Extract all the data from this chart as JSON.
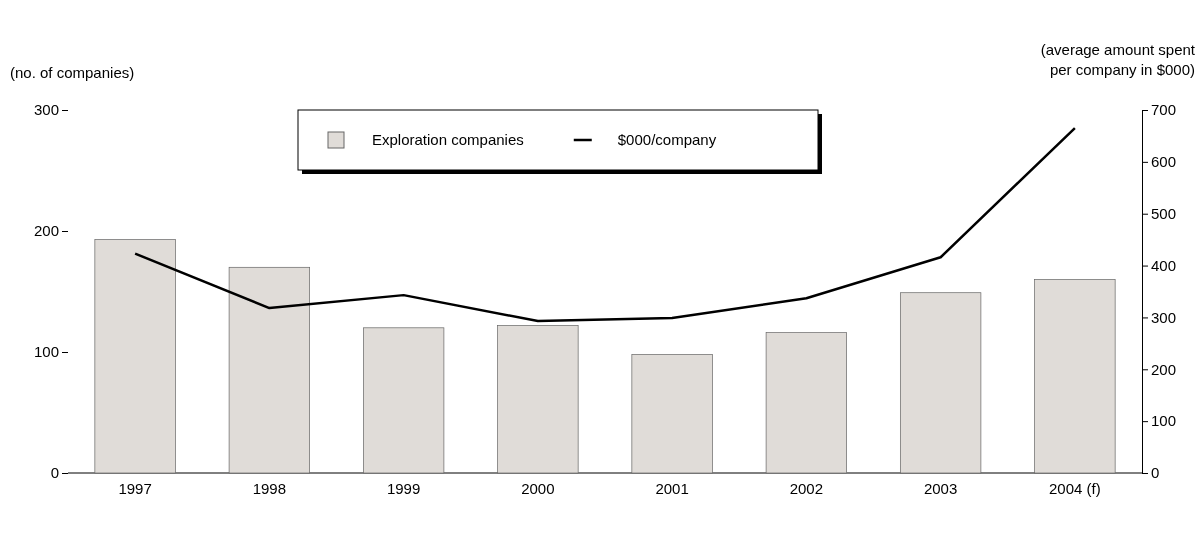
{
  "chart_data": {
    "type": "bar",
    "ylabel": "(no. of companies)",
    "y2label": "(average amount spent per company in $000)",
    "categories": [
      "1997",
      "1998",
      "1999",
      "2000",
      "2001",
      "2002",
      "2003",
      "2004 (f)"
    ],
    "series": [
      {
        "name": "Exploration companies",
        "color": "#e0dcd8",
        "values": [
          193,
          170,
          120,
          122,
          98,
          116,
          149,
          160
        ]
      },
      {
        "name": "$000/company",
        "type": "line",
        "axis": "y2",
        "color": "#000000",
        "values": [
          423,
          318,
          343,
          293,
          299,
          337,
          416,
          665
        ]
      }
    ],
    "ylim": [
      0,
      300
    ],
    "yticks": [
      0,
      100,
      200,
      300
    ],
    "y2lim": [
      0,
      700
    ],
    "y2ticks": [
      0,
      100,
      200,
      300,
      400,
      500,
      600,
      700
    ],
    "legend": "top",
    "grid": false
  }
}
